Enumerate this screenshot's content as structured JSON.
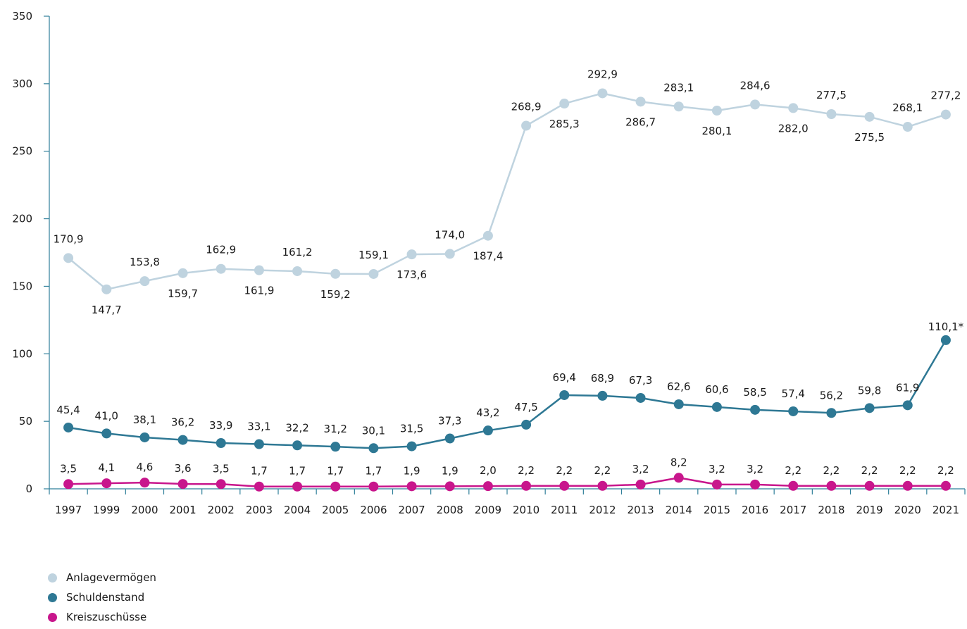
{
  "chart_data": {
    "type": "line",
    "categories": [
      "1997",
      "1999",
      "2000",
      "2001",
      "2002",
      "2003",
      "2004",
      "2005",
      "2006",
      "2007",
      "2008",
      "2009",
      "2010",
      "2011",
      "2012",
      "2013",
      "2014",
      "2015",
      "2016",
      "2017",
      "2018",
      "2019",
      "2020",
      "2021"
    ],
    "ylim": [
      0,
      350
    ],
    "yticks": [
      "0",
      "50",
      "100",
      "150",
      "200",
      "250",
      "300",
      "350"
    ],
    "grid": false,
    "legend_position": "bottom-left",
    "series": [
      {
        "name": "Anlagevermögen",
        "color": "#bfd3df",
        "values": [
          170.9,
          147.7,
          153.8,
          159.7,
          162.9,
          161.9,
          161.2,
          159.2,
          159.1,
          173.6,
          174.0,
          187.4,
          268.9,
          285.3,
          292.9,
          286.7,
          283.1,
          280.1,
          284.6,
          282.0,
          277.5,
          275.5,
          268.1,
          277.2
        ],
        "labels": [
          "170,9",
          "147,7",
          "153,8",
          "159,7",
          "162,9",
          "161,9",
          "161,2",
          "159,2",
          "159,1",
          "173,6",
          "174,0",
          "187,4",
          "268,9",
          "285,3",
          "292,9",
          "286,7",
          "283,1",
          "280,1",
          "284,6",
          "282,0",
          "277,5",
          "275,5",
          "268,1",
          "277,2"
        ],
        "label_side": [
          "up",
          "down",
          "up",
          "down",
          "up",
          "down",
          "up",
          "down",
          "up",
          "down",
          "up",
          "down",
          "up",
          "down",
          "up",
          "down",
          "up",
          "down",
          "up",
          "down",
          "up",
          "down",
          "up",
          "up"
        ]
      },
      {
        "name": "Schuldenstand",
        "color": "#2e7894",
        "values": [
          45.4,
          41.0,
          38.1,
          36.2,
          33.9,
          33.1,
          32.2,
          31.2,
          30.1,
          31.5,
          37.3,
          43.2,
          47.5,
          69.4,
          68.9,
          67.3,
          62.6,
          60.6,
          58.5,
          57.4,
          56.2,
          59.8,
          61.9,
          110.1
        ],
        "labels": [
          "45,4",
          "41,0",
          "38,1",
          "36,2",
          "33,9",
          "33,1",
          "32,2",
          "31,2",
          "30,1",
          "31,5",
          "37,3",
          "43,2",
          "47,5",
          "69,4",
          "68,9",
          "67,3",
          "62,6",
          "60,6",
          "58,5",
          "57,4",
          "56,2",
          "59,8",
          "61,9",
          "110,1*"
        ]
      },
      {
        "name": "Kreiszuschüsse",
        "color": "#c8168c",
        "values": [
          3.5,
          4.1,
          4.6,
          3.6,
          3.5,
          1.7,
          1.7,
          1.7,
          1.7,
          1.9,
          1.9,
          2.0,
          2.2,
          2.2,
          2.2,
          3.2,
          8.2,
          3.2,
          3.2,
          2.2,
          2.2,
          2.2,
          2.2,
          2.2
        ],
        "labels": [
          "3,5",
          "4,1",
          "4,6",
          "3,6",
          "3,5",
          "1,7",
          "1,7",
          "1,7",
          "1,7",
          "1,9",
          "1,9",
          "2,0",
          "2,2",
          "2,2",
          "2,2",
          "3,2",
          "8,2",
          "3,2",
          "3,2",
          "2,2",
          "2,2",
          "2,2",
          "2,2",
          "2,2"
        ]
      }
    ]
  }
}
